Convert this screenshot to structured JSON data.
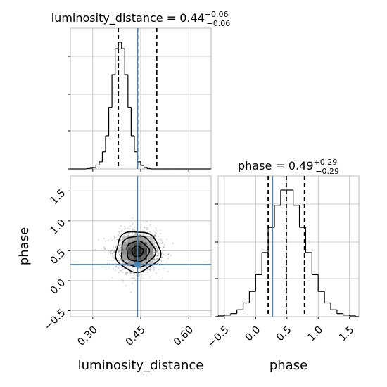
{
  "chart_data": {
    "type": "corner",
    "parameters": [
      "luminosity_distance",
      "phase"
    ],
    "colors": {
      "truth": "#4682b4",
      "hist": "#000000",
      "grid": "#bbbbbb",
      "points": "#444444"
    },
    "marginals": [
      {
        "param": "luminosity_distance",
        "title": {
          "name": "luminosity_distance",
          "value": "0.44",
          "plus": "+0.06",
          "minus": "−0.06"
        },
        "xlim": [
          0.23,
          0.67
        ],
        "quantiles": [
          0.38,
          0.44,
          0.5
        ],
        "truth": 0.44,
        "bins": [
          0.23,
          0.24,
          0.25,
          0.26,
          0.27,
          0.28,
          0.29,
          0.3,
          0.31,
          0.32,
          0.33,
          0.34,
          0.35,
          0.36,
          0.37,
          0.38,
          0.39,
          0.4,
          0.41,
          0.42,
          0.43,
          0.44,
          0.45,
          0.46,
          0.47,
          0.48,
          0.49,
          0.5,
          0.51,
          0.52,
          0.53,
          0.54,
          0.55,
          0.56,
          0.57,
          0.58,
          0.59,
          0.6,
          0.61,
          0.62,
          0.63,
          0.64,
          0.65,
          0.66,
          0.67
        ],
        "counts": [
          0,
          0,
          0,
          0,
          0,
          1,
          2,
          4,
          11,
          20,
          48,
          93,
          173,
          265,
          338,
          356,
          338,
          265,
          173,
          93,
          48,
          20,
          10,
          4,
          1,
          0,
          0,
          0,
          0,
          0,
          0,
          0,
          0,
          0,
          0,
          0,
          0,
          0,
          0,
          0,
          0,
          0,
          0,
          0
        ],
        "ylim": [
          0,
          1
        ],
        "xticks": [],
        "xtick_labels": []
      },
      {
        "param": "phase",
        "title": {
          "name": "phase",
          "value": "0.49",
          "plus": "+0.29",
          "minus": "−0.29"
        },
        "xlim": [
          -0.6,
          1.65
        ],
        "quantiles": [
          0.2,
          0.49,
          0.78
        ],
        "truth": 0.27,
        "bins": [
          -0.6,
          -0.5,
          -0.4,
          -0.3,
          -0.2,
          -0.1,
          0.0,
          0.1,
          0.2,
          0.3,
          0.4,
          0.5,
          0.6,
          0.7,
          0.8,
          0.9,
          1.0,
          1.1,
          1.2,
          1.3,
          1.4,
          1.5,
          1.6,
          1.65
        ],
        "counts": [
          1,
          2,
          4,
          9,
          18,
          33,
          55,
          84,
          117,
          146,
          166,
          166,
          146,
          117,
          84,
          55,
          33,
          18,
          9,
          4,
          2,
          1,
          0
        ],
        "ylim": [
          0,
          1
        ],
        "xticks": [
          -0.5,
          0.0,
          0.5,
          1.0,
          1.5
        ],
        "xtick_labels": [
          "−0.5",
          "0.0",
          "0.5",
          "1.0",
          "1.5"
        ]
      }
    ],
    "joint": {
      "x_param": "luminosity_distance",
      "y_param": "phase",
      "xlim": [
        0.23,
        0.67
      ],
      "ylim": [
        -0.6,
        1.75
      ],
      "xticks": [
        0.3,
        0.45,
        0.6
      ],
      "xtick_labels": [
        "0.30",
        "0.45",
        "0.60"
      ],
      "yticks": [
        -0.5,
        0.0,
        0.5,
        1.0,
        1.5
      ],
      "ytick_labels": [
        "−0.5",
        "0.0",
        "0.5",
        "1.0",
        "1.5"
      ],
      "truth": [
        0.44,
        0.27
      ],
      "center": [
        0.44,
        0.49
      ],
      "spread": [
        0.035,
        0.17
      ],
      "xlabel": "luminosity_distance",
      "ylabel": "phase",
      "contour_levels": [
        0.12,
        0.39,
        0.68,
        0.86
      ]
    },
    "marginal_xlabel": "phase",
    "grid": true
  }
}
